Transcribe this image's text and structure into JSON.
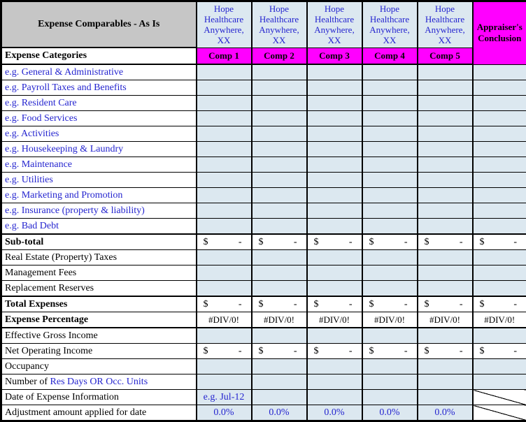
{
  "table": {
    "title": "Expense Comparables - As Is",
    "categories_header": "Expense Categories",
    "comp_columns": [
      {
        "name": "Hope Healthcare Anywhere, XX",
        "label": "Comp 1"
      },
      {
        "name": "Hope Healthcare Anywhere, XX",
        "label": "Comp 2"
      },
      {
        "name": "Hope Healthcare Anywhere, XX",
        "label": "Comp 3"
      },
      {
        "name": "Hope Healthcare Anywhere, XX",
        "label": "Comp 4"
      },
      {
        "name": "Hope Healthcare Anywhere, XX",
        "label": "Comp 5"
      }
    ],
    "appraiser_header": "Appraiser's Conclusion",
    "values": {
      "money_symbol": "$",
      "money_amount": "-",
      "div0": "#DIV/0!",
      "date_example": "e.g. Jul-12",
      "adjustment_pct": "0.0%"
    },
    "rows": [
      {
        "label": "e.g. General & Administrative",
        "color": "blue",
        "bg": "blue",
        "cells": [
          "blank",
          "blank",
          "blank",
          "blank",
          "blank",
          "blank"
        ]
      },
      {
        "label": "e.g. Payroll Taxes and Benefits",
        "color": "blue",
        "bg": "blue",
        "cells": [
          "blank",
          "blank",
          "blank",
          "blank",
          "blank",
          "blank"
        ]
      },
      {
        "label": "e.g. Resident Care",
        "color": "blue",
        "bg": "blue",
        "cells": [
          "blank",
          "blank",
          "blank",
          "blank",
          "blank",
          "blank"
        ]
      },
      {
        "label": "e.g. Food Services",
        "color": "blue",
        "bg": "blue",
        "cells": [
          "blank",
          "blank",
          "blank",
          "blank",
          "blank",
          "blank"
        ]
      },
      {
        "label": "e.g. Activities",
        "color": "blue",
        "bg": "blue",
        "cells": [
          "blank",
          "blank",
          "blank",
          "blank",
          "blank",
          "blank"
        ]
      },
      {
        "label": "e.g. Housekeeping & Laundry",
        "color": "blue",
        "bg": "blue",
        "cells": [
          "blank",
          "blank",
          "blank",
          "blank",
          "blank",
          "blank"
        ]
      },
      {
        "label": "e.g. Maintenance",
        "color": "blue",
        "bg": "blue",
        "cells": [
          "blank",
          "blank",
          "blank",
          "blank",
          "blank",
          "blank"
        ]
      },
      {
        "label": "e.g. Utilities",
        "color": "blue",
        "bg": "blue",
        "cells": [
          "blank",
          "blank",
          "blank",
          "blank",
          "blank",
          "blank"
        ]
      },
      {
        "label": "e.g. Marketing and Promotion",
        "color": "blue",
        "bg": "blue",
        "cells": [
          "blank",
          "blank",
          "blank",
          "blank",
          "blank",
          "blank"
        ]
      },
      {
        "label": "e.g. Insurance (property & liability)",
        "color": "blue",
        "bg": "blue",
        "cells": [
          "blank",
          "blank",
          "blank",
          "blank",
          "blank",
          "blank"
        ]
      },
      {
        "label": "e.g. Bad Debt",
        "color": "blue",
        "bg": "blue",
        "cells": [
          "blank",
          "blank",
          "blank",
          "blank",
          "blank",
          "blank"
        ]
      },
      {
        "label": "Sub-total",
        "bold": true,
        "thick": "top",
        "cells": [
          "money",
          "money",
          "money",
          "money",
          "money",
          "money"
        ]
      },
      {
        "label": "Real Estate (Property) Taxes",
        "cells": [
          "blank",
          "blank",
          "blank",
          "blank",
          "blank",
          "blank"
        ]
      },
      {
        "label": "Management Fees",
        "cells": [
          "blank",
          "blank",
          "blank",
          "blank",
          "blank",
          "blank"
        ]
      },
      {
        "label": "Replacement Reserves",
        "cells": [
          "blank",
          "blank",
          "blank",
          "blank",
          "blank",
          "blank"
        ]
      },
      {
        "label": "Total Expenses",
        "bold": true,
        "thick": "top",
        "cells": [
          "money",
          "money",
          "money",
          "money",
          "money",
          "money"
        ]
      },
      {
        "label": "Expense Percentage",
        "bold": true,
        "thick": "bottom",
        "cells": [
          "div0",
          "div0",
          "div0",
          "div0",
          "div0",
          "div0"
        ]
      },
      {
        "label": "Effective Gross Income",
        "cells": [
          "blank",
          "blank",
          "blank",
          "blank",
          "blank",
          "blank"
        ]
      },
      {
        "label": "Net Operating Income",
        "cells": [
          "money",
          "money",
          "money",
          "money",
          "money",
          "money"
        ]
      },
      {
        "label": "Occupancy",
        "cells": [
          "blank",
          "blank",
          "blank",
          "blank",
          "blank",
          "blank"
        ]
      },
      {
        "label": "Number of ",
        "label2": "Res Days OR Occ. Units",
        "cells": [
          "blank",
          "blank",
          "blank",
          "blank",
          "blank",
          "blank"
        ]
      },
      {
        "label": "Date of Expense Information",
        "cells": [
          "date",
          "blank",
          "blank",
          "blank",
          "blank",
          "diag"
        ]
      },
      {
        "label": "Adjustment amount applied for date",
        "cells": [
          "pct",
          "pct",
          "pct",
          "pct",
          "pct",
          "diag"
        ]
      }
    ]
  },
  "colors": {
    "header_gray": "#c6c6c6",
    "cell_light_blue": "#dce8f0",
    "comp_magenta": "#ff00ff",
    "text_blue": "#2424cf",
    "border_black": "#000000"
  }
}
